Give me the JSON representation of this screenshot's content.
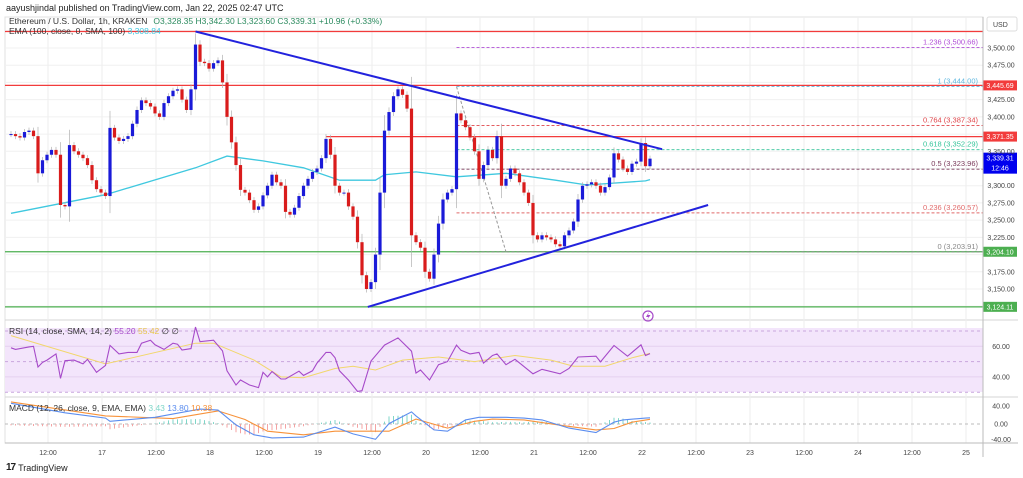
{
  "header": {
    "published": "aayushjindal published on TradingView.com, Jan 22, 2025 02:47 UTC"
  },
  "legend": {
    "symbol": "Ethereum / U.S. Dollar, 1h, KRAKEN",
    "open": "O3,328.35",
    "high": "H3,342.30",
    "low": "L3,323.60",
    "close": "C3,339.31",
    "change": "+10.96 (+0.33%)",
    "ema_label": "EMA (100, close, 0, SMA, 100)",
    "ema_value": "3,308.84"
  },
  "rsi_legend": {
    "label": "RSI (14, close, SMA, 14, 2)",
    "value": "55.20",
    "ma_value": "55.42",
    "extra": "∅ ∅"
  },
  "macd_legend": {
    "label": "MACD (12, 26, close, 9, EMA, EMA)",
    "hist": "3.43",
    "macd": "13.80",
    "signal": "10.38"
  },
  "footer": {
    "brand": "TradingView"
  },
  "colors": {
    "up": "#1a1ad8",
    "down": "#d91c1c",
    "ema": "#3fc8df",
    "trend": "#2222dd",
    "resistance": "#f23b3b",
    "support": "#4caf50",
    "rsi": "#a64ac9",
    "rsi_ma": "#f2d76b",
    "macd": "#5b8def",
    "signal": "#f7923a",
    "last_price": "#0000ee"
  },
  "chart_data": {
    "type": "candlestick",
    "currency": "USD",
    "interval": "1h",
    "x_ticks": [
      "12:00",
      "17",
      "12:00",
      "18",
      "12:00",
      "19",
      "12:00",
      "20",
      "12:00",
      "21",
      "12:00",
      "22",
      "12:00",
      "23",
      "12:00",
      "24",
      "12:00",
      "25"
    ],
    "y_ticks": [
      "3,500.00",
      "3,475.00",
      "3,425.00",
      "3,400.00",
      "3,350.00",
      "3,300.00",
      "3,275.00",
      "3,250.00",
      "3,225.00",
      "3,175.00",
      "3,150.00"
    ],
    "closes": [
      3375,
      3372,
      3370,
      3378,
      3380,
      3372,
      3318,
      3337,
      3345,
      3352,
      3345,
      3272,
      3270,
      3359,
      3350,
      3345,
      3340,
      3330,
      3308,
      3295,
      3290,
      3285,
      3384,
      3370,
      3365,
      3368,
      3372,
      3390,
      3410,
      3424,
      3420,
      3415,
      3405,
      3400,
      3420,
      3430,
      3438,
      3440,
      3425,
      3410,
      3440,
      3505,
      3480,
      3478,
      3470,
      3478,
      3482,
      3450,
      3400,
      3363,
      3330,
      3294,
      3290,
      3279,
      3265,
      3270,
      3286,
      3300,
      3316,
      3305,
      3300,
      3262,
      3258,
      3268,
      3285,
      3300,
      3310,
      3320,
      3325,
      3340,
      3368,
      3345,
      3300,
      3290,
      3290,
      3270,
      3255,
      3218,
      3170,
      3150,
      3160,
      3200,
      3290,
      3380,
      3407,
      3430,
      3440,
      3432,
      3412,
      3228,
      3218,
      3210,
      3175,
      3165,
      3200,
      3245,
      3280,
      3290,
      3295,
      3405,
      3395,
      3385,
      3370,
      3350,
      3310,
      3330,
      3352,
      3340,
      3372,
      3300,
      3310,
      3325,
      3318,
      3305,
      3290,
      3275,
      3228,
      3222,
      3228,
      3225,
      3222,
      3215,
      3212,
      3228,
      3235,
      3248,
      3280,
      3300,
      3302,
      3305,
      3300,
      3290,
      3298,
      3312,
      3347,
      3338,
      3325,
      3320,
      3332,
      3335,
      3362,
      3328.35,
      3339.31
    ],
    "ema_points": [
      [
        0,
        3260
      ],
      [
        21,
        3287
      ],
      [
        41,
        3326
      ],
      [
        48,
        3343
      ],
      [
        56,
        3336
      ],
      [
        65,
        3326
      ],
      [
        73,
        3308
      ],
      [
        81,
        3308
      ],
      [
        83,
        3316
      ],
      [
        90,
        3320
      ],
      [
        99,
        3313
      ],
      [
        110,
        3318
      ],
      [
        121,
        3308
      ],
      [
        128,
        3301
      ],
      [
        141,
        3307
      ],
      [
        142,
        3308.84
      ]
    ],
    "levels": [
      {
        "price": 3524,
        "color": "#f23b3b",
        "from": 0,
        "label": ""
      },
      {
        "price": 3445.69,
        "color": "#f23b3b",
        "from": 0,
        "label": "3,445.69"
      },
      {
        "price": 3371.35,
        "color": "#f23b3b",
        "from": 70,
        "label": "3,371.35"
      },
      {
        "price": 3204.1,
        "color": "#4caf50",
        "from": 0,
        "label": "3,204.10"
      },
      {
        "price": 3124.11,
        "color": "#4caf50",
        "from": 0,
        "label": "3,124.11"
      }
    ],
    "last_price": {
      "label": "3,339.31",
      "countdown": "12:46",
      "price": 3339.31
    },
    "fib_levels": [
      {
        "ratio": "1.236",
        "price": 3500.66,
        "text": "1.236 (3,500.66)",
        "color": "#b04fd6"
      },
      {
        "ratio": "1",
        "price": 3444.0,
        "text": "1 (3,444.00)",
        "color": "#5fb8e0"
      },
      {
        "ratio": "0.764",
        "price": 3387.34,
        "text": "0.764 (3,387.34)",
        "color": "#e0454a"
      },
      {
        "ratio": "0.618",
        "price": 3352.29,
        "text": "0.618 (3,352.29)",
        "color": "#35c49a"
      },
      {
        "ratio": "0.5",
        "price": 3323.96,
        "text": "0.5 (3,323.96)",
        "color": "#7a3a5a"
      },
      {
        "ratio": "0.236",
        "price": 3260.57,
        "text": "0.236 (3,260.57)",
        "color": "#e06a6a"
      },
      {
        "ratio": "0",
        "price": 3203.91,
        "text": "0 (3,203.91)",
        "color": "#888888"
      }
    ],
    "fib_anchor": [
      [
        99,
        3444
      ],
      [
        110,
        3203.91
      ]
    ],
    "trendlines": [
      {
        "name": "upper",
        "points": [
          [
            41,
            3524
          ],
          [
            144.7,
            3353
          ]
        ]
      },
      {
        "name": "lower",
        "points": [
          [
            79.3,
            3124
          ],
          [
            154.9,
            3272
          ]
        ]
      }
    ],
    "rsi": {
      "ticks": [
        "60.00",
        "40.00"
      ],
      "band": [
        30,
        70
      ],
      "values": [
        [
          0,
          59
        ],
        [
          1,
          58
        ],
        [
          4,
          59.6
        ],
        [
          5,
          60
        ],
        [
          6,
          46.5
        ],
        [
          7,
          49.5
        ],
        [
          8,
          51
        ],
        [
          10,
          55
        ],
        [
          11,
          39
        ],
        [
          12,
          50.6
        ],
        [
          14,
          51
        ],
        [
          16,
          48.5
        ],
        [
          17,
          51.5
        ],
        [
          19,
          43
        ],
        [
          21,
          47.5
        ],
        [
          22,
          60.6
        ],
        [
          24,
          55
        ],
        [
          26,
          56
        ],
        [
          28,
          56
        ],
        [
          29,
          62
        ],
        [
          31,
          64
        ],
        [
          32,
          61
        ],
        [
          34,
          58
        ],
        [
          36,
          62
        ],
        [
          37,
          61.4
        ],
        [
          38,
          57.6
        ],
        [
          40,
          58.5
        ],
        [
          41,
          72.6
        ],
        [
          42,
          63
        ],
        [
          45,
          64
        ],
        [
          47,
          57
        ],
        [
          48,
          44
        ],
        [
          50,
          34.7
        ],
        [
          51,
          38
        ],
        [
          53,
          34.7
        ],
        [
          55,
          33
        ],
        [
          56,
          43
        ],
        [
          57,
          40
        ],
        [
          58,
          43.5
        ],
        [
          60,
          38.6
        ],
        [
          61,
          38.6
        ],
        [
          64,
          43.7
        ],
        [
          65,
          41
        ],
        [
          67,
          44
        ],
        [
          68,
          49
        ],
        [
          70,
          56
        ],
        [
          71,
          56
        ],
        [
          72,
          52.6
        ],
        [
          73,
          44
        ],
        [
          75,
          37.9
        ],
        [
          77,
          30.5
        ],
        [
          78,
          31
        ],
        [
          80,
          50.4
        ],
        [
          83,
          60.8
        ],
        [
          86,
          65.5
        ],
        [
          89,
          56.8
        ],
        [
          90,
          42.5
        ],
        [
          91,
          44.5
        ],
        [
          93,
          38
        ],
        [
          95,
          48
        ],
        [
          97,
          50
        ],
        [
          99,
          60.8
        ],
        [
          100,
          57.4
        ],
        [
          102,
          55
        ],
        [
          104,
          56
        ],
        [
          105,
          49
        ],
        [
          107,
          54
        ],
        [
          108,
          55
        ],
        [
          110,
          48
        ],
        [
          112,
          51.5
        ],
        [
          114,
          46.7
        ],
        [
          116,
          42
        ],
        [
          118,
          45
        ],
        [
          122,
          42
        ],
        [
          124,
          45.5
        ],
        [
          126,
          53
        ],
        [
          130,
          53.5
        ],
        [
          131,
          49.8
        ],
        [
          134,
          60.5
        ],
        [
          137,
          53.5
        ],
        [
          138,
          56
        ],
        [
          140,
          61
        ],
        [
          141,
          54
        ],
        [
          142,
          55.2
        ]
      ],
      "ma": [
        [
          0,
          67
        ],
        [
          21,
          48.5
        ],
        [
          41,
          62
        ],
        [
          45,
          62
        ],
        [
          54,
          51
        ],
        [
          60,
          40
        ],
        [
          65,
          39.5
        ],
        [
          72,
          45.5
        ],
        [
          76,
          47
        ],
        [
          81,
          44.5
        ],
        [
          87,
          51
        ],
        [
          95,
          53
        ],
        [
          103,
          50
        ],
        [
          112,
          54
        ],
        [
          120,
          51
        ],
        [
          125,
          47
        ],
        [
          132,
          47
        ],
        [
          138,
          52.5
        ],
        [
          142,
          55.42
        ]
      ]
    },
    "macd": {
      "ticks": [
        "40.00",
        "0.00",
        "-40.00"
      ],
      "macd": [
        [
          0,
          46
        ],
        [
          12,
          25
        ],
        [
          21,
          13
        ],
        [
          22,
          6
        ],
        [
          32,
          15
        ],
        [
          42,
          33
        ],
        [
          46,
          31
        ],
        [
          50,
          -2
        ],
        [
          54,
          -24
        ],
        [
          58,
          -31
        ],
        [
          65,
          -29
        ],
        [
          72,
          -7
        ],
        [
          76,
          -22
        ],
        [
          81,
          -34
        ],
        [
          84,
          1
        ],
        [
          89,
          27
        ],
        [
          90,
          18
        ],
        [
          94,
          -13
        ],
        [
          97,
          -16
        ],
        [
          101,
          9
        ],
        [
          104,
          15
        ],
        [
          110,
          15
        ],
        [
          114,
          13
        ],
        [
          118,
          9
        ],
        [
          124,
          -9
        ],
        [
          130,
          -19
        ],
        [
          134,
          4
        ],
        [
          136,
          9
        ],
        [
          141,
          13
        ],
        [
          142,
          13.8
        ]
      ],
      "signal": [
        [
          0,
          49
        ],
        [
          21,
          18
        ],
        [
          36,
          12
        ],
        [
          46,
          29
        ],
        [
          52,
          10
        ],
        [
          57,
          -16
        ],
        [
          65,
          -24
        ],
        [
          72,
          -16
        ],
        [
          84,
          -16
        ],
        [
          90,
          11
        ],
        [
          97,
          -9
        ],
        [
          103,
          6
        ],
        [
          107,
          11
        ],
        [
          114,
          9
        ],
        [
          123,
          -4
        ],
        [
          130,
          -13
        ],
        [
          134,
          -10
        ],
        [
          138,
          4
        ],
        [
          142,
          10.38
        ]
      ]
    }
  }
}
